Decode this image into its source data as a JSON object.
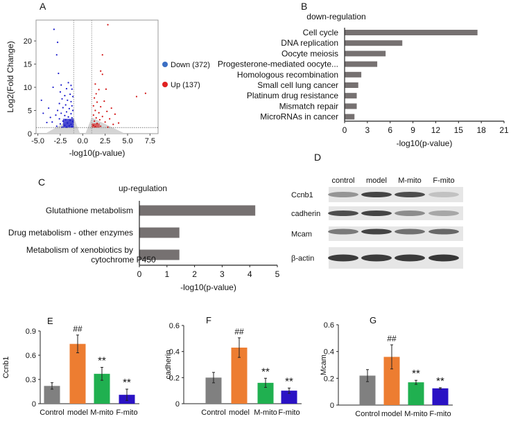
{
  "chart_data": [
    {
      "panel": "A",
      "type": "scatter",
      "xlabel": "-log10(p-value)",
      "ylabel": "Log2(Fold Change)",
      "xlim": [
        -5.2,
        8.4
      ],
      "ylim": [
        0,
        24.5
      ],
      "xticks": [
        "-5.0",
        "-2.5",
        "0.0",
        "2.5",
        "5.0",
        "7.5"
      ],
      "xtick_values": [
        -5,
        -2.5,
        0,
        2.5,
        5,
        7.5
      ],
      "yticks": [
        "0",
        "5",
        "10",
        "15",
        "20"
      ],
      "ytick_values": [
        0,
        5,
        10,
        15,
        20
      ],
      "threshold_x": [
        -1,
        1
      ],
      "threshold_y": 1.3,
      "legend_position": "right",
      "series": [
        {
          "name": "Down (372)",
          "color": "#3b6fc4",
          "point_color": "#1a1acc",
          "points": [
            [
              -3.2,
              22.5
            ],
            [
              -2.8,
              19.7
            ],
            [
              -2.9,
              17
            ],
            [
              -2.7,
              13
            ],
            [
              -3.3,
              10
            ],
            [
              -2.4,
              10.5
            ],
            [
              -1.6,
              11
            ],
            [
              -1.3,
              10.4
            ],
            [
              -1.8,
              9.7
            ],
            [
              -1.2,
              9.6
            ],
            [
              -2.5,
              9
            ],
            [
              -1.4,
              8.5
            ],
            [
              -2,
              8.2
            ],
            [
              -1.1,
              8
            ],
            [
              -2.3,
              7.5
            ],
            [
              -1.7,
              7.2
            ],
            [
              -1.3,
              6.9
            ],
            [
              -2.6,
              6.5
            ],
            [
              -1.9,
              6.2
            ],
            [
              -1.2,
              6
            ],
            [
              -2.2,
              5.6
            ],
            [
              -1.5,
              5.4
            ],
            [
              -2.8,
              5
            ],
            [
              -1.1,
              5
            ],
            [
              -1.8,
              4.7
            ],
            [
              -2.4,
              4.4
            ],
            [
              -1.3,
              4.3
            ],
            [
              -3,
              4
            ],
            [
              -2,
              3.9
            ],
            [
              -1.6,
              3.6
            ],
            [
              -1.2,
              3.4
            ],
            [
              -2.6,
              3.2
            ],
            [
              -1.9,
              3
            ],
            [
              -1.4,
              2.9
            ],
            [
              -2.2,
              2.7
            ],
            [
              -1.1,
              2.6
            ],
            [
              -3.4,
              2.5
            ],
            [
              -1.7,
              2.3
            ],
            [
              -2.5,
              2.1
            ],
            [
              -1.3,
              2
            ],
            [
              -2,
              1.8
            ],
            [
              -1.5,
              1.7
            ],
            [
              -2.9,
              1.6
            ],
            [
              -1.2,
              1.5
            ],
            [
              -1.8,
              1.4
            ],
            [
              -2.3,
              1.4
            ],
            [
              -4.6,
              7.2
            ],
            [
              -4.4,
              4.4
            ],
            [
              -3.8,
              5.5
            ],
            [
              -3.6,
              3.5
            ],
            [
              -4,
              2.4
            ]
          ]
        },
        {
          "name": "Up (137)",
          "color": "#e02020",
          "point_color": "#d21414",
          "points": [
            [
              2.8,
              23.5
            ],
            [
              2.2,
              17
            ],
            [
              2,
              13.5
            ],
            [
              2.2,
              12.8
            ],
            [
              1.4,
              10.7
            ],
            [
              1.8,
              9.5
            ],
            [
              2.6,
              9.6
            ],
            [
              1.5,
              8.6
            ],
            [
              1.3,
              7.7
            ],
            [
              2.4,
              7
            ],
            [
              1.6,
              6.8
            ],
            [
              1.2,
              6
            ],
            [
              2,
              5.8
            ],
            [
              3.2,
              5.5
            ],
            [
              1.4,
              5
            ],
            [
              2.7,
              4.8
            ],
            [
              1.8,
              4.5
            ],
            [
              3.6,
              4.2
            ],
            [
              1.2,
              4
            ],
            [
              2.2,
              3.7
            ],
            [
              1.5,
              3.4
            ],
            [
              3,
              3.2
            ],
            [
              1.9,
              3
            ],
            [
              1.3,
              2.7
            ],
            [
              2.5,
              2.5
            ],
            [
              1.6,
              2.2
            ],
            [
              3.4,
              2
            ],
            [
              1.2,
              1.8
            ],
            [
              2,
              1.6
            ],
            [
              1.4,
              1.5
            ],
            [
              2.8,
              1.4
            ],
            [
              6,
              8
            ],
            [
              7,
              8.7
            ],
            [
              4,
              2.3
            ]
          ]
        }
      ]
    },
    {
      "panel": "B",
      "type": "bar",
      "orientation": "horizontal",
      "title": "down-regulation",
      "xlabel": "-log10(p-value)",
      "xlim": [
        0,
        21
      ],
      "xticks": [
        "0",
        "3",
        "6",
        "9",
        "12",
        "15",
        "18",
        "21"
      ],
      "bar_color": "#767171",
      "categories": [
        "Cell cycle",
        "DNA replication",
        "Oocyte meiosis",
        "Progesterone-mediated oocyte...",
        "Homologous recombination",
        "Small cell lung cancer",
        "Platinum drug resistance",
        "Mismatch repair",
        "MicroRNAs in cancer"
      ],
      "values": [
        17.5,
        7.6,
        5.4,
        4.3,
        2.2,
        1.8,
        1.6,
        1.6,
        1.3
      ]
    },
    {
      "panel": "C",
      "type": "bar",
      "orientation": "horizontal",
      "title": "up-regulation",
      "xlabel": "-log10(p-value)",
      "xlim": [
        0,
        5
      ],
      "xticks": [
        "0",
        "1",
        "2",
        "3",
        "4",
        "5"
      ],
      "bar_color": "#767171",
      "categories": [
        [
          "Glutathione metabolism"
        ],
        [
          "Drug metabolism - other enzymes"
        ],
        [
          "Metabolism of xenobiotics by",
          "cytochrome P450"
        ]
      ],
      "values": [
        4.2,
        1.45,
        1.45
      ]
    },
    {
      "panel": "E",
      "type": "bar",
      "ylabel": "Ccnb1",
      "ylim": [
        0,
        0.9
      ],
      "yticks": [
        "0",
        "0.3",
        "0.6",
        "0.9"
      ],
      "categories": [
        "Control",
        "model",
        "M-mito",
        "F-mito"
      ],
      "values": [
        0.22,
        0.74,
        0.37,
        0.11
      ],
      "errors": [
        0.04,
        0.11,
        0.08,
        0.07
      ],
      "annotations": [
        "",
        "##",
        "**",
        "**"
      ],
      "colors": [
        "#808080",
        "#ed7d31",
        "#20b050",
        "#2a12c4"
      ]
    },
    {
      "panel": "F",
      "type": "bar",
      "ylabel": "cadherin",
      "ylim": [
        0,
        0.6
      ],
      "yticks": [
        "0",
        "0.2",
        "0.4",
        "0.6"
      ],
      "categories": [
        "Control",
        "model",
        "M-mito",
        "F-mito"
      ],
      "values": [
        0.2,
        0.43,
        0.16,
        0.1
      ],
      "errors": [
        0.04,
        0.075,
        0.035,
        0.02
      ],
      "annotations": [
        "",
        "##",
        "**",
        "**"
      ],
      "colors": [
        "#808080",
        "#ed7d31",
        "#20b050",
        "#2a12c4"
      ]
    },
    {
      "panel": "G",
      "type": "bar",
      "ylabel": "Mcam",
      "ylim": [
        0,
        0.6
      ],
      "yticks": [
        "0",
        "0.2",
        "0.4",
        "0.6"
      ],
      "categories": [
        "Control",
        "model",
        "M-mito",
        "F-mito"
      ],
      "values": [
        0.22,
        0.36,
        0.17,
        0.125
      ],
      "errors": [
        0.045,
        0.09,
        0.015,
        0.005
      ],
      "annotations": [
        "",
        "##",
        "**",
        "**"
      ],
      "colors": [
        "#808080",
        "#ed7d31",
        "#20b050",
        "#2a12c4"
      ]
    }
  ],
  "western_blot": {
    "panel": "D",
    "columns": [
      "control",
      "model",
      "M-mito",
      "F-mito"
    ],
    "rows": [
      {
        "label": "Ccnb1",
        "intensity": [
          0.45,
          0.9,
          0.85,
          0.2
        ]
      },
      {
        "label": "cadherin",
        "intensity": [
          0.85,
          0.9,
          0.5,
          0.35
        ]
      },
      {
        "label": "Mcam",
        "intensity": [
          0.6,
          0.9,
          0.65,
          0.7
        ]
      },
      {
        "label": "β-actin",
        "intensity": [
          0.95,
          0.95,
          0.95,
          0.97
        ]
      }
    ]
  }
}
